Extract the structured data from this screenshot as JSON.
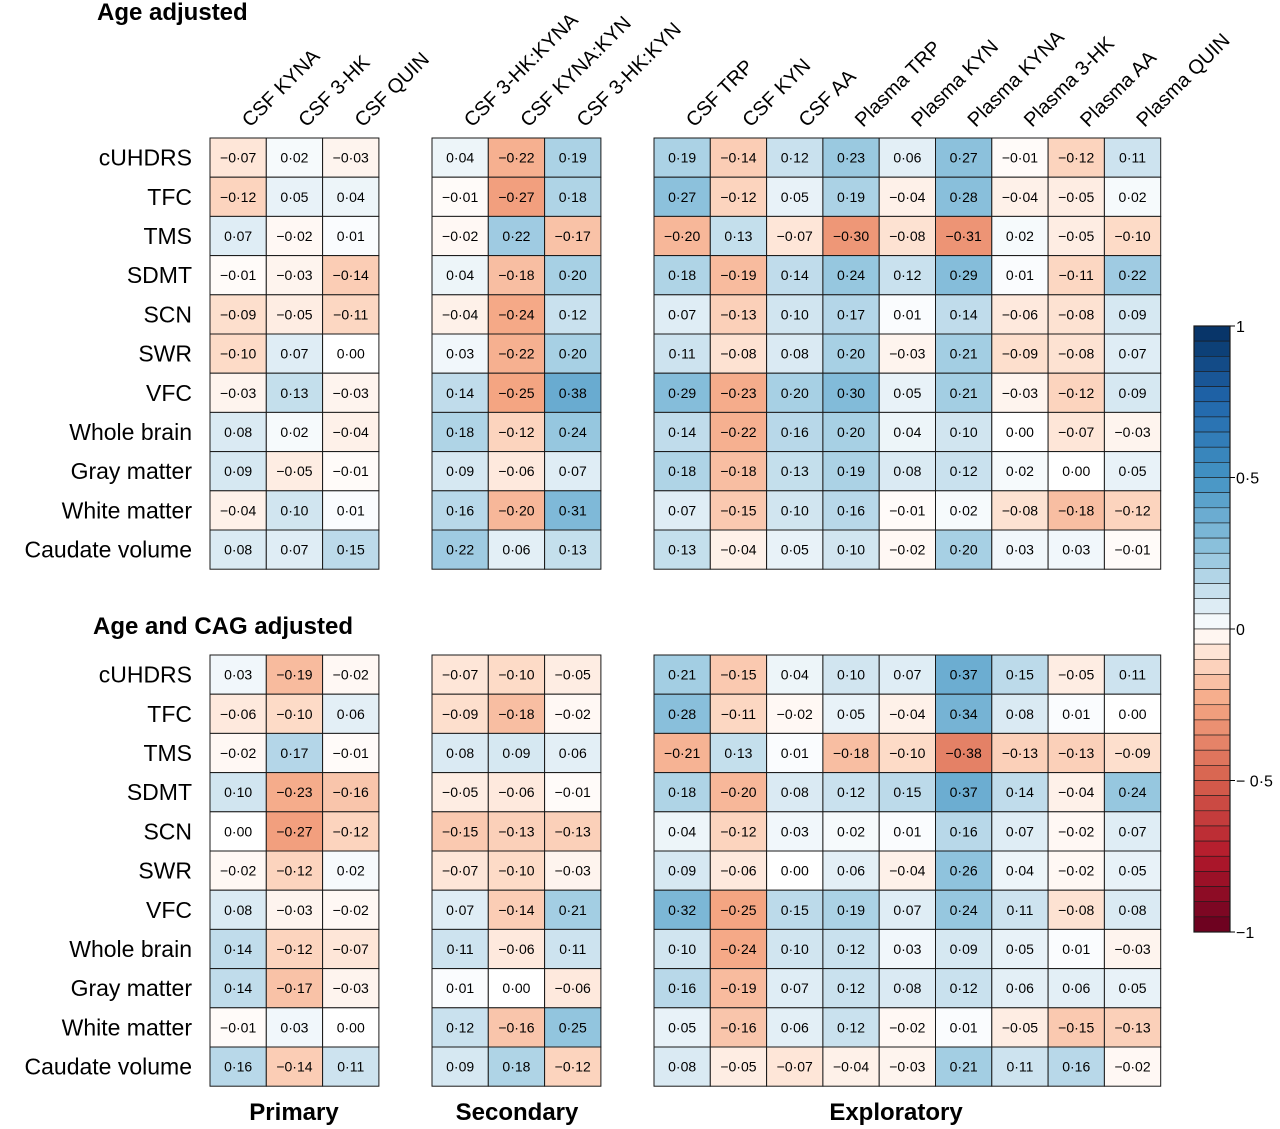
{
  "chart_data": {
    "type": "heatmap",
    "panels": [
      {
        "title": "Age adjusted"
      },
      {
        "title": "Age and CAG adjusted"
      }
    ],
    "groups": [
      "Primary",
      "Secondary",
      "Exploratory"
    ],
    "columns": [
      [
        "CSF KYNA",
        "CSF 3-HK",
        "CSF QUIN"
      ],
      [
        "CSF 3-HK:KYNA",
        "CSF KYNA:KYN",
        "CSF 3-HK:KYN"
      ],
      [
        "CSF TRP",
        "CSF KYN",
        "CSF AA",
        "Plasma TRP",
        "Plasma KYN",
        "Plasma KYNA",
        "Plasma 3-HK",
        "Plasma AA",
        "Plasma QUIN"
      ]
    ],
    "rows": [
      "cUHDRS",
      "TFC",
      "TMS",
      "SDMT",
      "SCN",
      "SWR",
      "VFC",
      "Whole brain",
      "Gray matter",
      "White matter",
      "Caudate volume"
    ],
    "values": [
      [
        [
          -0.07,
          0.02,
          -0.03,
          0.04,
          -0.22,
          0.19,
          0.19,
          -0.14,
          0.12,
          0.23,
          0.06,
          0.27,
          -0.01,
          -0.12,
          0.11
        ],
        [
          -0.12,
          0.05,
          0.04,
          -0.01,
          -0.27,
          0.18,
          0.27,
          -0.12,
          0.05,
          0.19,
          -0.04,
          0.28,
          -0.04,
          -0.05,
          0.02
        ],
        [
          0.07,
          -0.02,
          0.01,
          -0.02,
          0.22,
          -0.17,
          -0.2,
          0.13,
          -0.07,
          -0.3,
          -0.08,
          -0.31,
          0.02,
          -0.05,
          -0.1
        ],
        [
          -0.01,
          -0.03,
          -0.14,
          0.04,
          -0.18,
          0.2,
          0.18,
          -0.19,
          0.14,
          0.24,
          0.12,
          0.29,
          0.01,
          -0.11,
          0.22
        ],
        [
          -0.09,
          -0.05,
          -0.11,
          -0.04,
          -0.24,
          0.12,
          0.07,
          -0.13,
          0.1,
          0.17,
          0.01,
          0.14,
          -0.06,
          -0.08,
          0.09
        ],
        [
          -0.1,
          0.07,
          0.0,
          0.03,
          -0.22,
          0.2,
          0.11,
          -0.08,
          0.08,
          0.2,
          -0.03,
          0.21,
          -0.09,
          -0.08,
          0.07
        ],
        [
          -0.03,
          0.13,
          -0.03,
          0.14,
          -0.25,
          0.38,
          0.29,
          -0.23,
          0.2,
          0.3,
          0.05,
          0.21,
          -0.03,
          -0.12,
          0.09
        ],
        [
          0.08,
          0.02,
          -0.04,
          0.18,
          -0.12,
          0.24,
          0.14,
          -0.22,
          0.16,
          0.2,
          0.04,
          0.1,
          0.0,
          -0.07,
          -0.03
        ],
        [
          0.09,
          -0.05,
          -0.01,
          0.09,
          -0.06,
          0.07,
          0.18,
          -0.18,
          0.13,
          0.19,
          0.08,
          0.12,
          0.02,
          0.0,
          0.05
        ],
        [
          -0.04,
          0.1,
          0.01,
          0.16,
          -0.2,
          0.31,
          0.07,
          -0.15,
          0.1,
          0.16,
          -0.01,
          0.02,
          -0.08,
          -0.18,
          -0.12
        ],
        [
          0.08,
          0.07,
          0.15,
          0.22,
          0.06,
          0.13,
          0.13,
          -0.04,
          0.05,
          0.1,
          -0.02,
          0.2,
          0.03,
          0.03,
          -0.01
        ]
      ],
      [
        [
          0.03,
          -0.19,
          -0.02,
          -0.07,
          -0.1,
          -0.05,
          0.21,
          -0.15,
          0.04,
          0.1,
          0.07,
          0.37,
          0.15,
          -0.05,
          0.11
        ],
        [
          -0.06,
          -0.1,
          0.06,
          -0.09,
          -0.18,
          -0.02,
          0.28,
          -0.11,
          -0.02,
          0.05,
          -0.04,
          0.34,
          0.08,
          0.01,
          0.0
        ],
        [
          -0.02,
          0.17,
          -0.01,
          0.08,
          0.09,
          0.06,
          -0.21,
          0.13,
          0.01,
          -0.18,
          -0.1,
          -0.38,
          -0.13,
          -0.13,
          -0.09
        ],
        [
          0.1,
          -0.23,
          -0.16,
          -0.05,
          -0.06,
          -0.01,
          0.18,
          -0.2,
          0.08,
          0.12,
          0.15,
          0.37,
          0.14,
          -0.04,
          0.24
        ],
        [
          0.0,
          -0.27,
          -0.12,
          -0.15,
          -0.13,
          -0.13,
          0.04,
          -0.12,
          0.03,
          0.02,
          0.01,
          0.16,
          0.07,
          -0.02,
          0.07
        ],
        [
          -0.02,
          -0.12,
          0.02,
          -0.07,
          -0.1,
          -0.03,
          0.09,
          -0.06,
          0.0,
          0.06,
          -0.04,
          0.26,
          0.04,
          -0.02,
          0.05
        ],
        [
          0.08,
          -0.03,
          -0.02,
          0.07,
          -0.14,
          0.21,
          0.32,
          -0.25,
          0.15,
          0.19,
          0.07,
          0.24,
          0.11,
          -0.08,
          0.08
        ],
        [
          0.14,
          -0.12,
          -0.07,
          0.11,
          -0.06,
          0.11,
          0.1,
          -0.24,
          0.1,
          0.12,
          0.03,
          0.09,
          0.05,
          0.01,
          -0.03
        ],
        [
          0.14,
          -0.17,
          -0.03,
          0.01,
          0.0,
          -0.06,
          0.16,
          -0.19,
          0.07,
          0.12,
          0.08,
          0.12,
          0.06,
          0.06,
          0.05
        ],
        [
          -0.01,
          0.03,
          0.0,
          0.12,
          -0.16,
          0.25,
          0.05,
          -0.16,
          0.06,
          0.12,
          -0.02,
          0.01,
          -0.05,
          -0.15,
          -0.13
        ],
        [
          0.16,
          -0.14,
          0.11,
          0.09,
          0.18,
          -0.12,
          0.08,
          -0.05,
          -0.07,
          -0.04,
          -0.03,
          0.21,
          0.11,
          0.16,
          -0.02
        ]
      ]
    ],
    "colorbar": {
      "range": [
        -1,
        1
      ],
      "ticks": [
        "1",
        "0·5",
        "0",
        "− 0·5",
        "−1"
      ],
      "neg_color": "#67001f",
      "mid_color": "#ffffff",
      "pos_color": "#053061"
    },
    "decimal_mark": "·"
  }
}
